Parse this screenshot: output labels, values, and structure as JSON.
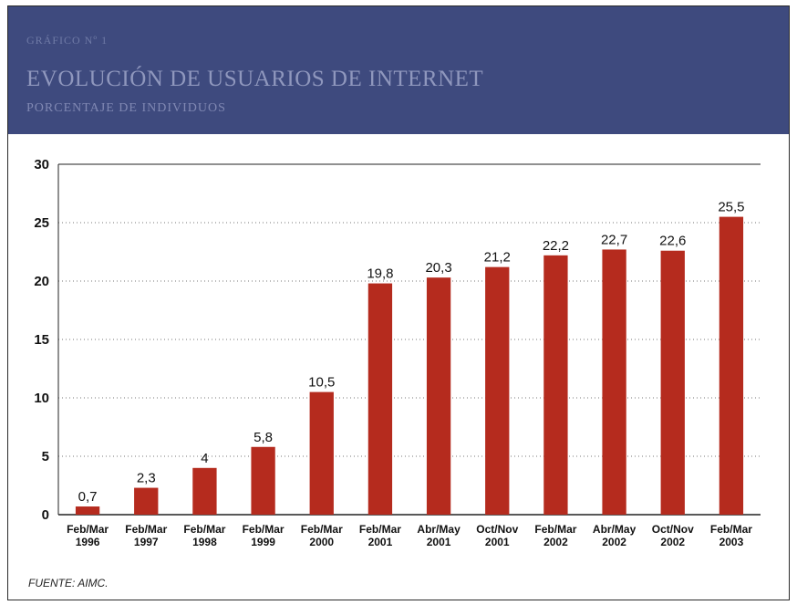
{
  "header": {
    "kicker": "GRÁFICO Nº 1",
    "title": "EVOLUCIÓN DE USUARIOS DE INTERNET",
    "subtitle": "PORCENTAJE DE INDIVIDUOS"
  },
  "source": "FUENTE: AIMC.",
  "colors": {
    "header_bg": "#3e4a7e",
    "bar": "#b52b1e"
  },
  "chart_data": {
    "type": "bar",
    "title": "EVOLUCIÓN DE USUARIOS DE INTERNET",
    "subtitle": "PORCENTAJE DE INDIVIDUOS",
    "xlabel": "",
    "ylabel": "",
    "ylim": [
      0,
      30
    ],
    "yticks": [
      0,
      5,
      10,
      15,
      20,
      25,
      30
    ],
    "grid": true,
    "categories": [
      [
        "Feb/Mar",
        "1996"
      ],
      [
        "Feb/Mar",
        "1997"
      ],
      [
        "Feb/Mar",
        "1998"
      ],
      [
        "Feb/Mar",
        "1999"
      ],
      [
        "Feb/Mar",
        "2000"
      ],
      [
        "Feb/Mar",
        "2001"
      ],
      [
        "Abr/May",
        "2001"
      ],
      [
        "Oct/Nov",
        "2001"
      ],
      [
        "Feb/Mar",
        "2002"
      ],
      [
        "Abr/May",
        "2002"
      ],
      [
        "Oct/Nov",
        "2002"
      ],
      [
        "Feb/Mar",
        "2003"
      ]
    ],
    "values": [
      0.7,
      2.3,
      4,
      5.8,
      10.5,
      19.8,
      20.3,
      21.2,
      22.2,
      22.7,
      22.6,
      25.5
    ],
    "labels": [
      "0,7",
      "2,3",
      "4",
      "5,8",
      "10,5",
      "19,8",
      "20,3",
      "21,2",
      "22,2",
      "22,7",
      "22,6",
      "25,5"
    ]
  }
}
